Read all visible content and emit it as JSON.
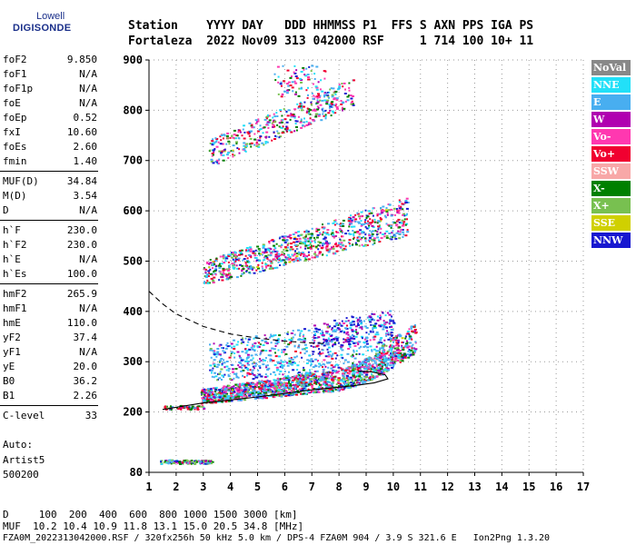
{
  "logo": {
    "line1": "Lowell",
    "line2": "DIGISONDE"
  },
  "header": {
    "row1": "Station    YYYY DAY   DDD HHMMSS P1  FFS S AXN PPS IGA PS",
    "row2": "Fortaleza  2022 Nov09 313 042000 RSF     1 714 100 10+ 11"
  },
  "params": {
    "group1": [
      {
        "label": "foF2",
        "value": "9.850"
      },
      {
        "label": "foF1",
        "value": "N/A"
      },
      {
        "label": "foF1p",
        "value": "N/A"
      },
      {
        "label": "foE",
        "value": "N/A"
      },
      {
        "label": "foEp",
        "value": "0.52"
      },
      {
        "label": "fxI",
        "value": "10.60"
      },
      {
        "label": "foEs",
        "value": "2.60"
      },
      {
        "label": "fmin",
        "value": "1.40"
      }
    ],
    "group2": [
      {
        "label": "MUF(D)",
        "value": "34.84"
      },
      {
        "label": "M(D)",
        "value": "3.54"
      },
      {
        "label": "D",
        "value": "N/A"
      }
    ],
    "group3": [
      {
        "label": "h`F",
        "value": "230.0"
      },
      {
        "label": "h`F2",
        "value": "230.0"
      },
      {
        "label": "h`E",
        "value": "N/A"
      },
      {
        "label": "h`Es",
        "value": "100.0"
      }
    ],
    "group4": [
      {
        "label": "hmF2",
        "value": "265.9"
      },
      {
        "label": "hmF1",
        "value": "N/A"
      },
      {
        "label": "hmE",
        "value": "110.0"
      },
      {
        "label": "yF2",
        "value": "37.4"
      },
      {
        "label": "yF1",
        "value": "N/A"
      },
      {
        "label": "yE",
        "value": "20.0"
      },
      {
        "label": "B0",
        "value": "36.2"
      },
      {
        "label": "B1",
        "value": "2.26"
      }
    ],
    "group5": [
      {
        "label": "C-level",
        "value": "33"
      }
    ]
  },
  "auto": {
    "line1": "Auto:",
    "line2": "Artist5",
    "line3": "500200"
  },
  "footer": {
    "distances": "D     100  200  400  600  800 1000 1500 3000 [km]",
    "muf": "MUF  10.2 10.4 10.9 11.8 13.1 15.0 20.5 34.8 [MHz]",
    "file": "FZA0M_2022313042000.RSF / 320fx256h 50 kHz 5.0 km / DPS-4 FZA0M 904 / 3.9 S 321.6 E   Ion2Png 1.3.20"
  },
  "legend": [
    {
      "label": "NoVal",
      "color": "#888888"
    },
    {
      "label": "NNE",
      "color": "#22e0f8"
    },
    {
      "label": "E",
      "color": "#48aef0"
    },
    {
      "label": "W",
      "color": "#b000b0"
    },
    {
      "label": "Vo-",
      "color": "#ff38b0"
    },
    {
      "label": "Vo+",
      "color": "#f00030"
    },
    {
      "label": "SSW",
      "color": "#f8a8a8"
    },
    {
      "label": "X-",
      "color": "#008000"
    },
    {
      "label": "X+",
      "color": "#78c050"
    },
    {
      "label": "SSE",
      "color": "#d0d000"
    },
    {
      "label": "NNW",
      "color": "#1818d0"
    }
  ],
  "chart_data": {
    "type": "scatter",
    "xlabel": "",
    "ylabel": "",
    "xlim": [
      1,
      17
    ],
    "ylim": [
      80,
      900
    ],
    "x_ticks": [
      1,
      2,
      3,
      4,
      5,
      6,
      7,
      8,
      9,
      10,
      11,
      12,
      13,
      14,
      15,
      16,
      17
    ],
    "y_ticks": [
      80,
      200,
      300,
      400,
      500,
      600,
      700,
      800,
      900
    ],
    "grid": true,
    "legend_position": "right",
    "traces": [
      {
        "name": "Es",
        "x_range": [
          1.4,
          3.3
        ],
        "virtual_height_km": [
          100,
          105
        ]
      },
      {
        "name": "F-low",
        "x_range": [
          1.5,
          3.0
        ],
        "virtual_height_km": [
          205,
          215
        ]
      },
      {
        "name": "F1st",
        "x_range": [
          2.9,
          10.8
        ],
        "virtual_height_km": [
          232,
          380
        ]
      },
      {
        "name": "F2nd",
        "x_range": [
          3.0,
          10.5
        ],
        "virtual_height_km": [
          465,
          650
        ]
      },
      {
        "name": "F3rd",
        "x_range": [
          3.2,
          8.5
        ],
        "virtual_height_km": [
          700,
          890
        ]
      }
    ],
    "profile_curve": [
      [
        1.5,
        205
      ],
      [
        3,
        218
      ],
      [
        5,
        230
      ],
      [
        7,
        244
      ],
      [
        8.5,
        252
      ],
      [
        9.3,
        258
      ],
      [
        9.8,
        266
      ],
      [
        9.7,
        274
      ],
      [
        9.2,
        280
      ],
      [
        8.7,
        281
      ]
    ],
    "dashed_curve": [
      [
        1.0,
        440
      ],
      [
        1.5,
        415
      ],
      [
        2.0,
        395
      ],
      [
        3.0,
        370
      ],
      [
        4.0,
        355
      ],
      [
        5.0,
        347
      ],
      [
        6.0,
        341
      ],
      [
        7.0,
        337
      ],
      [
        7.5,
        336
      ]
    ]
  }
}
